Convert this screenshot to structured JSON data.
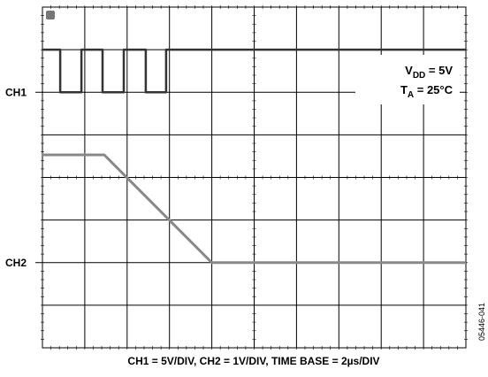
{
  "chart_data": {
    "type": "line",
    "caption": "CH1 = 5V/DIV, CH2 = 1V/DIV, TIME BASE = 2µs/DIV",
    "figure_id": "05446-041",
    "annotations": [
      {
        "main": "V",
        "sub": "DD",
        "rest": " = 5V"
      },
      {
        "main": "T",
        "sub": "A",
        "rest": " = 25°C"
      }
    ],
    "xlim": [
      0,
      10
    ],
    "ylim": [
      0,
      8
    ],
    "xticks": [
      0,
      1,
      2,
      3,
      4,
      5,
      6,
      7,
      8,
      9,
      10
    ],
    "yticks": [
      0,
      1,
      2,
      3,
      4,
      5,
      6,
      7,
      8
    ],
    "grid": true,
    "series": [
      {
        "name": "CH1",
        "color": "#333333",
        "level": 6,
        "x": [
          0,
          0.42,
          0.42,
          0.92,
          0.92,
          1.42,
          1.42,
          1.92,
          1.92,
          2.44,
          2.44,
          2.92,
          2.92,
          10
        ],
        "values": [
          7,
          7,
          6,
          6,
          7,
          7,
          6,
          6,
          7,
          7,
          6,
          6,
          7,
          7
        ]
      },
      {
        "name": "CH2",
        "color": "#888888",
        "level": 2,
        "x": [
          0,
          1.46,
          4.0,
          10
        ],
        "values": [
          4.53,
          4.53,
          2.0,
          2.0
        ]
      }
    ]
  }
}
